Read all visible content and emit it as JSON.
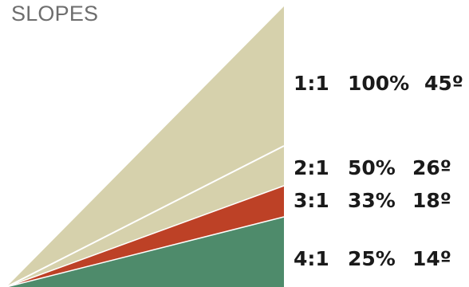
{
  "title": "SLOPES",
  "colors": {
    "fill_1_1": "#d6d1ac",
    "fill_2_1": "#d6d1ac",
    "fill_3_1": "#bd4126",
    "fill_4_1": "#4e8b6b",
    "divider": "#ffffff"
  },
  "slopes": [
    {
      "ratio": "1:1",
      "percent": "100%",
      "angle": "45º"
    },
    {
      "ratio": "2:1",
      "percent": "50%",
      "angle": "26º"
    },
    {
      "ratio": "3:1",
      "percent": "33%",
      "angle": "18º"
    },
    {
      "ratio": "4:1",
      "percent": "25%",
      "angle": "14º"
    }
  ]
}
